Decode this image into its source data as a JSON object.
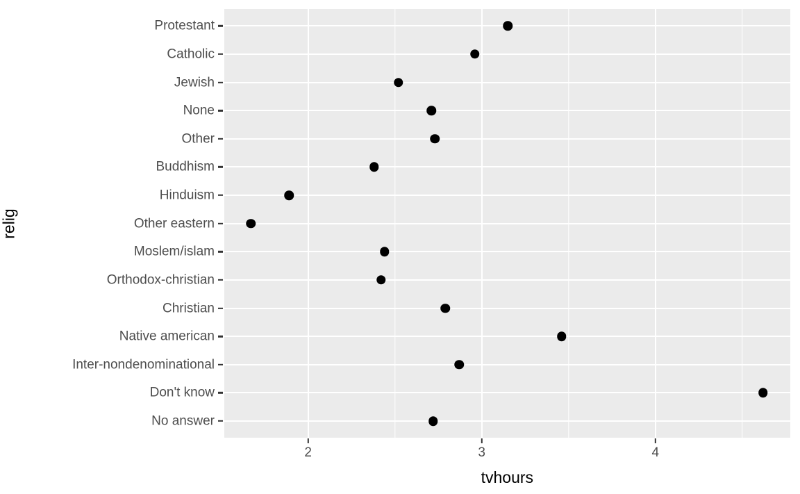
{
  "chart_data": {
    "type": "scatter",
    "orientation": "horizontal_categorical",
    "title": "",
    "xlabel": "tvhours",
    "ylabel": "relig",
    "categories": [
      "Protestant",
      "Catholic",
      "Jewish",
      "None",
      "Other",
      "Buddhism",
      "Hinduism",
      "Other eastern",
      "Moslem/islam",
      "Orthodox-christian",
      "Christian",
      "Native american",
      "Inter-nondenominational",
      "Don't know",
      "No answer"
    ],
    "values": [
      3.15,
      2.96,
      2.52,
      2.71,
      2.73,
      2.38,
      1.89,
      1.67,
      2.44,
      2.42,
      2.79,
      3.46,
      2.87,
      4.62,
      2.72
    ],
    "x_ticks_major": [
      2,
      3,
      4
    ],
    "x_tick_labels": [
      "2",
      "3",
      "4"
    ],
    "x_ticks_minor": [
      2.5,
      3.5,
      4.5
    ],
    "xlim": [
      1.516,
      4.777
    ],
    "categorical_expansion": 0.6,
    "grid": "white major and minor verticals, white major horizontals on grey panel",
    "legend": "none",
    "style": {
      "panel_bg": "#EBEBEB",
      "gridline_color": "#FFFFFF",
      "point_color": "#000000",
      "axis_text_color": "#4D4D4D",
      "tick_mark_color": "#333333",
      "axis_title_color": "#000000"
    }
  }
}
